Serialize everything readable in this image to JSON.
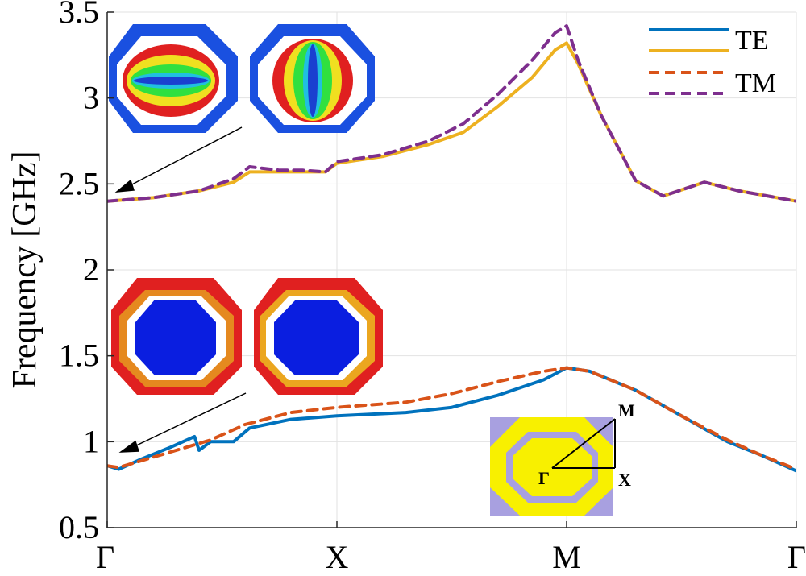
{
  "chart_data": {
    "type": "line",
    "ylabel": "Frequency [GHz]",
    "xticks": [
      "Γ",
      "X",
      "M",
      "Γ"
    ],
    "ylim": [
      0.5,
      3.5
    ],
    "yticks": [
      "0.5",
      "1",
      "1.5",
      "2",
      "2.5",
      "3",
      "3.5"
    ],
    "grid": true,
    "legend_position": "top-right",
    "series": [
      {
        "name": "TE",
        "color": "#0072BD",
        "dash": "solid",
        "points": [
          [
            0,
            0.86
          ],
          [
            0.05,
            0.84
          ],
          [
            0.15,
            0.9
          ],
          [
            0.28,
            0.97
          ],
          [
            0.38,
            1.03
          ],
          [
            0.4,
            0.95
          ],
          [
            0.45,
            1.0
          ],
          [
            0.55,
            1.0
          ],
          [
            0.62,
            1.08
          ],
          [
            0.8,
            1.13
          ],
          [
            1.0,
            1.15
          ],
          [
            1.3,
            1.17
          ],
          [
            1.5,
            1.2
          ],
          [
            1.7,
            1.27
          ],
          [
            1.9,
            1.36
          ],
          [
            2.0,
            1.43
          ],
          [
            2.1,
            1.41
          ],
          [
            2.3,
            1.3
          ],
          [
            2.5,
            1.15
          ],
          [
            2.7,
            1.0
          ],
          [
            2.85,
            0.92
          ],
          [
            3.0,
            0.83
          ]
        ]
      },
      {
        "name": "TM",
        "color": "#D95319",
        "dash": "dashed",
        "points": [
          [
            0,
            0.86
          ],
          [
            0.05,
            0.85
          ],
          [
            0.15,
            0.89
          ],
          [
            0.3,
            0.95
          ],
          [
            0.45,
            1.01
          ],
          [
            0.6,
            1.1
          ],
          [
            0.8,
            1.17
          ],
          [
            1.0,
            1.2
          ],
          [
            1.3,
            1.23
          ],
          [
            1.5,
            1.28
          ],
          [
            1.7,
            1.35
          ],
          [
            1.9,
            1.41
          ],
          [
            2.0,
            1.43
          ],
          [
            2.1,
            1.41
          ],
          [
            2.3,
            1.3
          ],
          [
            2.5,
            1.15
          ],
          [
            2.7,
            1.01
          ],
          [
            2.85,
            0.92
          ],
          [
            3.0,
            0.84
          ]
        ]
      },
      {
        "name": "",
        "color": "#EDB120",
        "dash": "solid",
        "points": [
          [
            0,
            2.4
          ],
          [
            0.2,
            2.42
          ],
          [
            0.4,
            2.46
          ],
          [
            0.55,
            2.51
          ],
          [
            0.62,
            2.57
          ],
          [
            0.75,
            2.57
          ],
          [
            0.85,
            2.57
          ],
          [
            0.95,
            2.57
          ],
          [
            1.0,
            2.62
          ],
          [
            1.2,
            2.66
          ],
          [
            1.4,
            2.73
          ],
          [
            1.55,
            2.8
          ],
          [
            1.7,
            2.95
          ],
          [
            1.85,
            3.12
          ],
          [
            1.95,
            3.28
          ],
          [
            2.0,
            3.32
          ],
          [
            2.05,
            3.2
          ],
          [
            2.15,
            2.9
          ],
          [
            2.3,
            2.52
          ],
          [
            2.42,
            2.43
          ],
          [
            2.6,
            2.51
          ],
          [
            2.75,
            2.46
          ],
          [
            3.0,
            2.4
          ]
        ]
      },
      {
        "name": "",
        "color": "#7E2F8E",
        "dash": "dashed",
        "points": [
          [
            0,
            2.4
          ],
          [
            0.2,
            2.42
          ],
          [
            0.4,
            2.46
          ],
          [
            0.55,
            2.53
          ],
          [
            0.62,
            2.6
          ],
          [
            0.75,
            2.58
          ],
          [
            0.85,
            2.58
          ],
          [
            0.95,
            2.57
          ],
          [
            1.0,
            2.63
          ],
          [
            1.2,
            2.67
          ],
          [
            1.4,
            2.75
          ],
          [
            1.55,
            2.85
          ],
          [
            1.7,
            3.02
          ],
          [
            1.85,
            3.22
          ],
          [
            1.95,
            3.38
          ],
          [
            2.0,
            3.42
          ],
          [
            2.05,
            3.22
          ],
          [
            2.15,
            2.9
          ],
          [
            2.3,
            2.52
          ],
          [
            2.42,
            2.43
          ],
          [
            2.6,
            2.51
          ],
          [
            2.75,
            2.46
          ],
          [
            3.0,
            2.4
          ]
        ]
      }
    ],
    "inset_labels": [
      "M",
      "Γ",
      "X"
    ]
  }
}
